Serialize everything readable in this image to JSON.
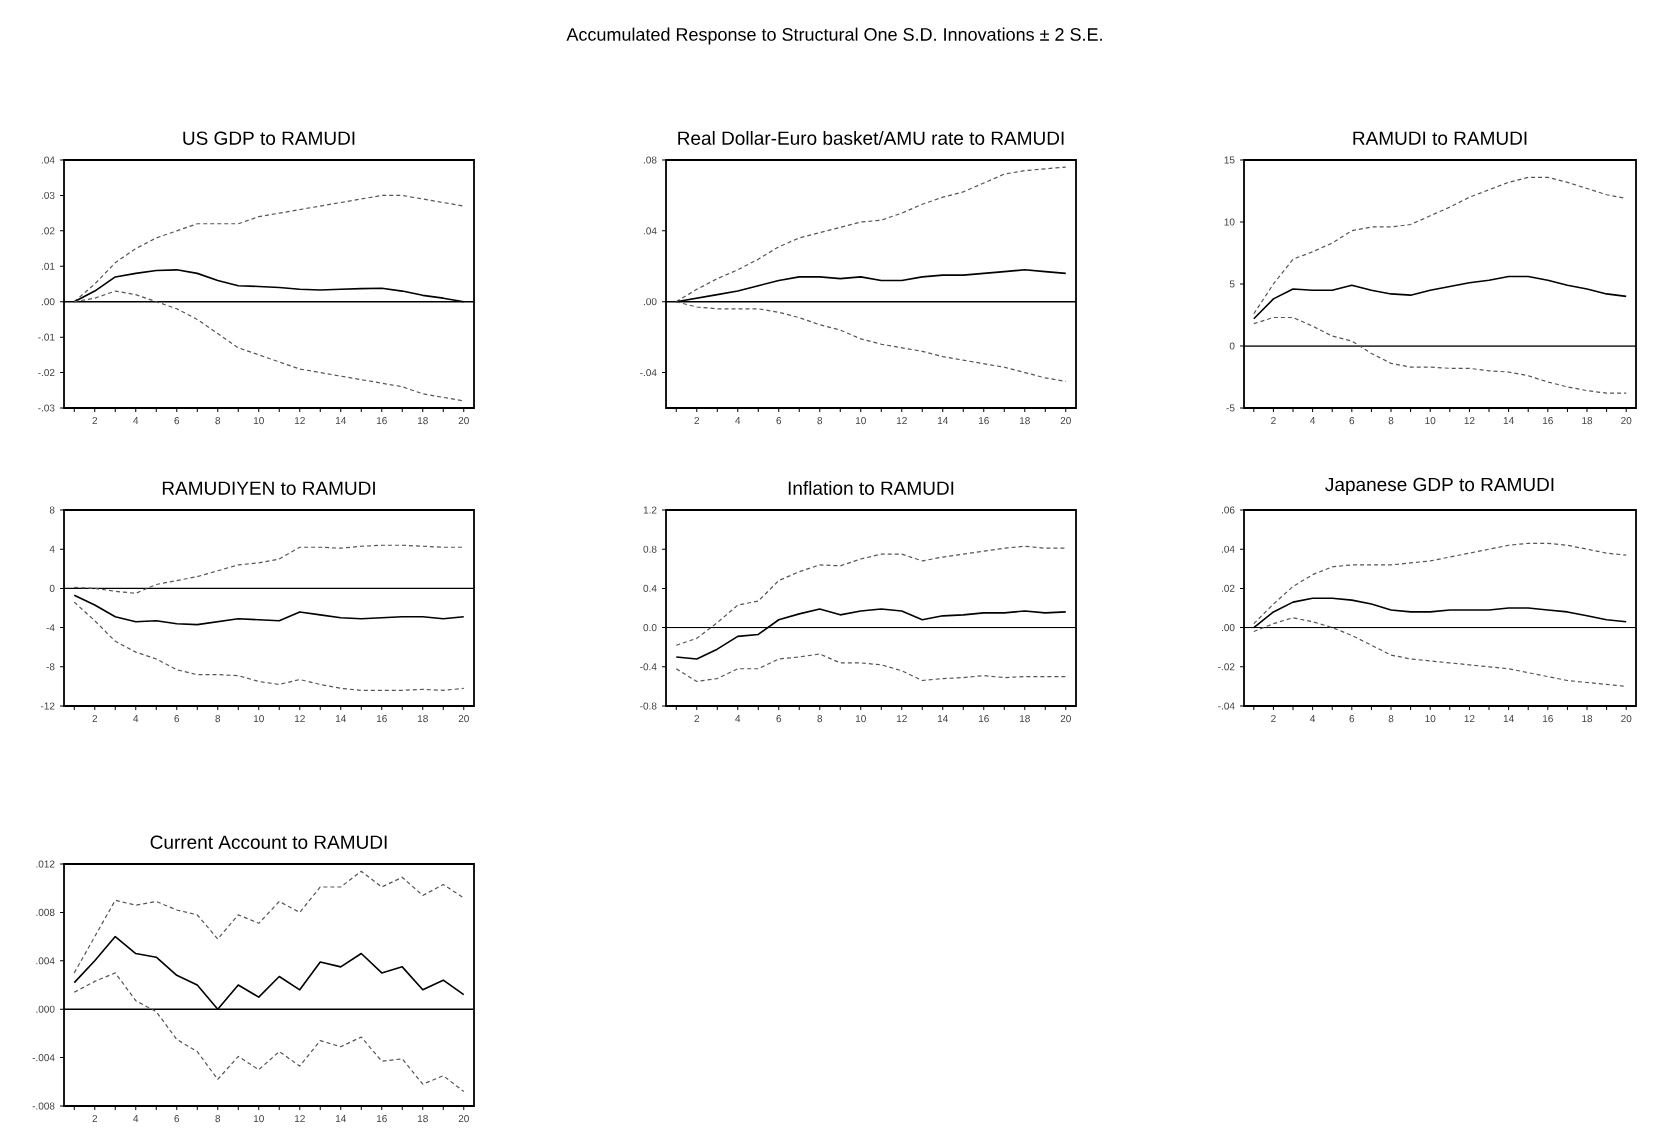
{
  "chart_data": [
    {
      "type": "other",
      "title": "Accumulated Response to Structural One S.D. Innovations ± 2 S.E."
    },
    {
      "type": "line",
      "title": "US GDP to RAMUDI",
      "x": [
        1,
        2,
        3,
        4,
        5,
        6,
        7,
        8,
        9,
        10,
        11,
        12,
        13,
        14,
        15,
        16,
        17,
        18,
        19,
        20
      ],
      "xlim": [
        0.5,
        20.5
      ],
      "ylim": [
        -0.03,
        0.04
      ],
      "xticks": [
        {
          "value": 1,
          "label": null
        },
        2,
        {
          "value": 3,
          "label": null
        },
        4,
        {
          "value": 5,
          "label": null
        },
        6,
        {
          "value": 7,
          "label": null
        },
        8,
        {
          "value": 9,
          "label": null
        },
        10,
        {
          "value": 11,
          "label": null
        },
        12,
        {
          "value": 13,
          "label": null
        },
        14,
        {
          "value": 15,
          "label": null
        },
        16,
        {
          "value": 17,
          "label": null
        },
        18,
        {
          "value": 19,
          "label": null
        },
        20
      ],
      "yticks": [
        {
          "value": -0.03,
          "label": "-.03"
        },
        {
          "value": -0.02,
          "label": "-.02"
        },
        {
          "value": -0.01,
          "label": "-.01"
        },
        {
          "value": 0,
          "label": ".00"
        },
        {
          "value": 0.01,
          "label": ".01"
        },
        {
          "value": 0.02,
          "label": ".02"
        },
        {
          "value": 0.03,
          "label": ".03"
        },
        {
          "value": 0.04,
          "label": ".04"
        }
      ],
      "ref_lines": [
        {
          "axis": "y",
          "value": 0,
          "color": "#000000"
        }
      ],
      "series": [
        {
          "color": "#555555",
          "line_style": "dashed",
          "values": [
            0,
            0.005,
            0.011,
            0.015,
            0.018,
            0.02,
            0.022,
            0.022,
            0.022,
            0.024,
            0.025,
            0.026,
            0.027,
            0.028,
            0.029,
            0.03,
            0.03,
            0.029,
            0.028,
            0.027
          ]
        },
        {
          "color": "#000000",
          "line_style": "solid",
          "values": [
            0,
            0.003,
            0.007,
            0.008,
            0.0088,
            0.009,
            0.008,
            0.006,
            0.0045,
            0.0043,
            0.004,
            0.0035,
            0.0033,
            0.0035,
            0.0037,
            0.0038,
            0.003,
            0.0018,
            0.001,
            0
          ]
        },
        {
          "color": "#555555",
          "line_style": "dashed",
          "values": [
            0,
            0.001,
            0.003,
            0.002,
            0,
            -0.002,
            -0.005,
            -0.009,
            -0.013,
            -0.015,
            -0.017,
            -0.019,
            -0.02,
            -0.021,
            -0.022,
            -0.023,
            -0.024,
            -0.026,
            -0.027,
            -0.028
          ]
        }
      ]
    },
    {
      "type": "line",
      "title": "Real Dollar-Euro basket/AMU rate to RAMUDI",
      "x": [
        1,
        2,
        3,
        4,
        5,
        6,
        7,
        8,
        9,
        10,
        11,
        12,
        13,
        14,
        15,
        16,
        17,
        18,
        19,
        20
      ],
      "xlim": [
        0.5,
        20.5
      ],
      "ylim": [
        -0.06,
        0.08
      ],
      "xticks": [
        {
          "value": 1,
          "label": null
        },
        2,
        {
          "value": 3,
          "label": null
        },
        4,
        {
          "value": 5,
          "label": null
        },
        6,
        {
          "value": 7,
          "label": null
        },
        8,
        {
          "value": 9,
          "label": null
        },
        10,
        {
          "value": 11,
          "label": null
        },
        12,
        {
          "value": 13,
          "label": null
        },
        14,
        {
          "value": 15,
          "label": null
        },
        16,
        {
          "value": 17,
          "label": null
        },
        18,
        {
          "value": 19,
          "label": null
        },
        20
      ],
      "yticks": [
        {
          "value": -0.04,
          "label": "-.04"
        },
        {
          "value": 0,
          "label": ".00"
        },
        {
          "value": 0.04,
          "label": ".04"
        },
        {
          "value": 0.08,
          "label": ".08"
        }
      ],
      "ref_lines": [
        {
          "axis": "y",
          "value": 0,
          "color": "#000000"
        }
      ],
      "series": [
        {
          "color": "#555555",
          "line_style": "dashed",
          "values": [
            0,
            0.007,
            0.013,
            0.018,
            0.024,
            0.031,
            0.036,
            0.039,
            0.042,
            0.045,
            0.046,
            0.05,
            0.055,
            0.059,
            0.062,
            0.067,
            0.072,
            0.074,
            0.075,
            0.076
          ]
        },
        {
          "color": "#000000",
          "line_style": "solid",
          "values": [
            0,
            0.002,
            0.004,
            0.006,
            0.009,
            0.012,
            0.014,
            0.014,
            0.013,
            0.014,
            0.012,
            0.012,
            0.014,
            0.015,
            0.015,
            0.016,
            0.017,
            0.018,
            0.017,
            0.016
          ]
        },
        {
          "color": "#555555",
          "line_style": "dashed",
          "values": [
            0,
            -0.003,
            -0.004,
            -0.004,
            -0.004,
            -0.006,
            -0.009,
            -0.013,
            -0.016,
            -0.021,
            -0.024,
            -0.026,
            -0.028,
            -0.031,
            -0.033,
            -0.035,
            -0.037,
            -0.04,
            -0.043,
            -0.045
          ]
        }
      ]
    },
    {
      "type": "line",
      "title": "RAMUDI to RAMUDI",
      "x": [
        1,
        2,
        3,
        4,
        5,
        6,
        7,
        8,
        9,
        10,
        11,
        12,
        13,
        14,
        15,
        16,
        17,
        18,
        19,
        20
      ],
      "xlim": [
        0.5,
        20.5
      ],
      "ylim": [
        -5,
        15
      ],
      "xticks": [
        {
          "value": 1,
          "label": null
        },
        2,
        {
          "value": 3,
          "label": null
        },
        4,
        {
          "value": 5,
          "label": null
        },
        6,
        {
          "value": 7,
          "label": null
        },
        8,
        {
          "value": 9,
          "label": null
        },
        10,
        {
          "value": 11,
          "label": null
        },
        12,
        {
          "value": 13,
          "label": null
        },
        14,
        {
          "value": 15,
          "label": null
        },
        16,
        {
          "value": 17,
          "label": null
        },
        18,
        {
          "value": 19,
          "label": null
        },
        20
      ],
      "yticks": [
        -5,
        0,
        5,
        10,
        15
      ],
      "ref_lines": [
        {
          "axis": "y",
          "value": 0,
          "color": "#000000"
        }
      ],
      "series": [
        {
          "color": "#555555",
          "line_style": "dashed",
          "values": [
            2.6,
            5.0,
            7.0,
            7.6,
            8.3,
            9.3,
            9.6,
            9.6,
            9.8,
            10.5,
            11.2,
            12.0,
            12.6,
            13.2,
            13.6,
            13.6,
            13.2,
            12.7,
            12.2,
            11.9
          ]
        },
        {
          "color": "#000000",
          "line_style": "solid",
          "values": [
            2.2,
            3.8,
            4.6,
            4.5,
            4.5,
            4.9,
            4.5,
            4.2,
            4.1,
            4.5,
            4.8,
            5.1,
            5.3,
            5.6,
            5.6,
            5.3,
            4.9,
            4.6,
            4.2,
            4.0
          ]
        },
        {
          "color": "#555555",
          "line_style": "dashed",
          "values": [
            1.8,
            2.3,
            2.3,
            1.6,
            0.8,
            0.4,
            -0.6,
            -1.4,
            -1.7,
            -1.7,
            -1.8,
            -1.8,
            -2.0,
            -2.1,
            -2.4,
            -2.9,
            -3.3,
            -3.6,
            -3.8,
            -3.8
          ]
        }
      ]
    },
    {
      "type": "line",
      "title": "RAMUDIYEN to RAMUDI",
      "x": [
        1,
        2,
        3,
        4,
        5,
        6,
        7,
        8,
        9,
        10,
        11,
        12,
        13,
        14,
        15,
        16,
        17,
        18,
        19,
        20
      ],
      "xlim": [
        0.5,
        20.5
      ],
      "ylim": [
        -12,
        8
      ],
      "xticks": [
        {
          "value": 1,
          "label": null
        },
        2,
        {
          "value": 3,
          "label": null
        },
        4,
        {
          "value": 5,
          "label": null
        },
        6,
        {
          "value": 7,
          "label": null
        },
        8,
        {
          "value": 9,
          "label": null
        },
        10,
        {
          "value": 11,
          "label": null
        },
        12,
        {
          "value": 13,
          "label": null
        },
        14,
        {
          "value": 15,
          "label": null
        },
        16,
        {
          "value": 17,
          "label": null
        },
        18,
        {
          "value": 19,
          "label": null
        },
        20
      ],
      "yticks": [
        -12,
        -8,
        -4,
        0,
        4,
        8
      ],
      "ref_lines": [
        {
          "axis": "y",
          "value": 0,
          "color": "#000000"
        }
      ],
      "series": [
        {
          "color": "#555555",
          "line_style": "dashed",
          "values": [
            0.1,
            0.0,
            -0.3,
            -0.5,
            0.4,
            0.8,
            1.2,
            1.8,
            2.4,
            2.6,
            3.0,
            4.2,
            4.2,
            4.1,
            4.3,
            4.4,
            4.4,
            4.3,
            4.2,
            4.2
          ]
        },
        {
          "color": "#000000",
          "line_style": "solid",
          "values": [
            -0.7,
            -1.7,
            -2.9,
            -3.4,
            -3.3,
            -3.6,
            -3.7,
            -3.4,
            -3.1,
            -3.2,
            -3.3,
            -2.4,
            -2.7,
            -3.0,
            -3.1,
            -3.0,
            -2.9,
            -2.9,
            -3.1,
            -2.9
          ]
        },
        {
          "color": "#555555",
          "line_style": "dashed",
          "values": [
            -1.4,
            -3.3,
            -5.4,
            -6.5,
            -7.2,
            -8.3,
            -8.8,
            -8.8,
            -8.9,
            -9.5,
            -9.8,
            -9.3,
            -9.8,
            -10.2,
            -10.4,
            -10.4,
            -10.4,
            -10.3,
            -10.4,
            -10.2
          ]
        }
      ]
    },
    {
      "type": "line",
      "title": "Inflation to RAMUDI",
      "x": [
        1,
        2,
        3,
        4,
        5,
        6,
        7,
        8,
        9,
        10,
        11,
        12,
        13,
        14,
        15,
        16,
        17,
        18,
        19,
        20
      ],
      "xlim": [
        0.5,
        20.5
      ],
      "ylim": [
        -0.8,
        1.2
      ],
      "xticks": [
        {
          "value": 1,
          "label": null
        },
        2,
        {
          "value": 3,
          "label": null
        },
        4,
        {
          "value": 5,
          "label": null
        },
        6,
        {
          "value": 7,
          "label": null
        },
        8,
        {
          "value": 9,
          "label": null
        },
        10,
        {
          "value": 11,
          "label": null
        },
        12,
        {
          "value": 13,
          "label": null
        },
        14,
        {
          "value": 15,
          "label": null
        },
        16,
        {
          "value": 17,
          "label": null
        },
        18,
        {
          "value": 19,
          "label": null
        },
        20
      ],
      "yticks": [
        {
          "value": -0.8,
          "label": "-0.8"
        },
        {
          "value": -0.4,
          "label": "-0.4"
        },
        {
          "value": 0,
          "label": "0.0"
        },
        {
          "value": 0.4,
          "label": "0.4"
        },
        {
          "value": 0.8,
          "label": "0.8"
        },
        {
          "value": 1.2,
          "label": "1.2"
        }
      ],
      "ref_lines": [
        {
          "axis": "y",
          "value": 0,
          "color": "#000000"
        }
      ],
      "series": [
        {
          "color": "#555555",
          "line_style": "dashed",
          "values": [
            -0.18,
            -0.11,
            0.05,
            0.23,
            0.27,
            0.48,
            0.57,
            0.64,
            0.63,
            0.7,
            0.75,
            0.75,
            0.68,
            0.72,
            0.75,
            0.78,
            0.81,
            0.83,
            0.81,
            0.81
          ]
        },
        {
          "color": "#000000",
          "line_style": "solid",
          "values": [
            -0.3,
            -0.32,
            -0.22,
            -0.09,
            -0.07,
            0.08,
            0.14,
            0.19,
            0.13,
            0.17,
            0.19,
            0.17,
            0.08,
            0.12,
            0.13,
            0.15,
            0.15,
            0.17,
            0.15,
            0.16
          ]
        },
        {
          "color": "#555555",
          "line_style": "dashed",
          "values": [
            -0.42,
            -0.55,
            -0.52,
            -0.42,
            -0.42,
            -0.32,
            -0.3,
            -0.27,
            -0.36,
            -0.36,
            -0.38,
            -0.44,
            -0.54,
            -0.52,
            -0.51,
            -0.49,
            -0.51,
            -0.5,
            -0.5,
            -0.5
          ]
        }
      ]
    },
    {
      "type": "line",
      "title": "Japanese GDP to RAMUDI",
      "x": [
        1,
        2,
        3,
        4,
        5,
        6,
        7,
        8,
        9,
        10,
        11,
        12,
        13,
        14,
        15,
        16,
        17,
        18,
        19,
        20
      ],
      "xlim": [
        0.5,
        20.5
      ],
      "ylim": [
        -0.04,
        0.06
      ],
      "xticks": [
        {
          "value": 1,
          "label": null
        },
        2,
        {
          "value": 3,
          "label": null
        },
        4,
        {
          "value": 5,
          "label": null
        },
        6,
        {
          "value": 7,
          "label": null
        },
        8,
        {
          "value": 9,
          "label": null
        },
        10,
        {
          "value": 11,
          "label": null
        },
        12,
        {
          "value": 13,
          "label": null
        },
        14,
        {
          "value": 15,
          "label": null
        },
        16,
        {
          "value": 17,
          "label": null
        },
        18,
        {
          "value": 19,
          "label": null
        },
        20
      ],
      "yticks": [
        {
          "value": -0.04,
          "label": "-.04"
        },
        {
          "value": -0.02,
          "label": "-.02"
        },
        {
          "value": 0,
          "label": ".00"
        },
        {
          "value": 0.02,
          "label": ".02"
        },
        {
          "value": 0.04,
          "label": ".04"
        },
        {
          "value": 0.06,
          "label": ".06"
        }
      ],
      "ref_lines": [
        {
          "axis": "y",
          "value": 0,
          "color": "#000000"
        }
      ],
      "series": [
        {
          "color": "#555555",
          "line_style": "dashed",
          "values": [
            0.002,
            0.012,
            0.021,
            0.027,
            0.031,
            0.032,
            0.032,
            0.032,
            0.033,
            0.034,
            0.036,
            0.038,
            0.04,
            0.042,
            0.043,
            0.043,
            0.042,
            0.04,
            0.038,
            0.037
          ]
        },
        {
          "color": "#000000",
          "line_style": "solid",
          "values": [
            0,
            0.008,
            0.013,
            0.015,
            0.015,
            0.014,
            0.012,
            0.009,
            0.008,
            0.008,
            0.009,
            0.009,
            0.009,
            0.01,
            0.01,
            0.009,
            0.008,
            0.006,
            0.004,
            0.003
          ]
        },
        {
          "color": "#555555",
          "line_style": "dashed",
          "values": [
            -0.002,
            0.002,
            0.005,
            0.003,
            0,
            -0.004,
            -0.009,
            -0.014,
            -0.016,
            -0.017,
            -0.018,
            -0.019,
            -0.02,
            -0.021,
            -0.023,
            -0.025,
            -0.027,
            -0.028,
            -0.029,
            -0.03
          ]
        }
      ]
    },
    {
      "type": "line",
      "title": "Current Account to RAMUDI",
      "x": [
        1,
        2,
        3,
        4,
        5,
        6,
        7,
        8,
        9,
        10,
        11,
        12,
        13,
        14,
        15,
        16,
        17,
        18,
        19,
        20
      ],
      "xlim": [
        0.5,
        20.5
      ],
      "ylim": [
        -0.008,
        0.012
      ],
      "xticks": [
        {
          "value": 1,
          "label": null
        },
        2,
        {
          "value": 3,
          "label": null
        },
        4,
        {
          "value": 5,
          "label": null
        },
        6,
        {
          "value": 7,
          "label": null
        },
        8,
        {
          "value": 9,
          "label": null
        },
        10,
        {
          "value": 11,
          "label": null
        },
        12,
        {
          "value": 13,
          "label": null
        },
        14,
        {
          "value": 15,
          "label": null
        },
        16,
        {
          "value": 17,
          "label": null
        },
        18,
        {
          "value": 19,
          "label": null
        },
        20
      ],
      "yticks": [
        {
          "value": -0.008,
          "label": "-.008"
        },
        {
          "value": -0.004,
          "label": "-.004"
        },
        {
          "value": 0,
          "label": ".000"
        },
        {
          "value": 0.004,
          "label": ".004"
        },
        {
          "value": 0.008,
          "label": ".008"
        },
        {
          "value": 0.012,
          "label": ".012"
        }
      ],
      "ref_lines": [
        {
          "axis": "y",
          "value": 0,
          "color": "#000000"
        }
      ],
      "series": [
        {
          "color": "#555555",
          "line_style": "dashed",
          "values": [
            0.003,
            0.006,
            0.009,
            0.0086,
            0.0089,
            0.0082,
            0.0078,
            0.0058,
            0.0078,
            0.0071,
            0.0089,
            0.008,
            0.0101,
            0.0101,
            0.0114,
            0.0101,
            0.0109,
            0.0094,
            0.0103,
            0.0092
          ]
        },
        {
          "color": "#000000",
          "line_style": "solid",
          "values": [
            0.0022,
            0.004,
            0.006,
            0.0046,
            0.0043,
            0.0028,
            0.002,
            0,
            0.002,
            0.001,
            0.0027,
            0.0016,
            0.0039,
            0.0035,
            0.0046,
            0.003,
            0.0035,
            0.0016,
            0.0024,
            0.0012
          ]
        },
        {
          "color": "#555555",
          "line_style": "dashed",
          "values": [
            0.0014,
            0.0023,
            0.003,
            0.0007,
            -0.0002,
            -0.0025,
            -0.0035,
            -0.0058,
            -0.0039,
            -0.005,
            -0.0035,
            -0.0047,
            -0.0026,
            -0.0031,
            -0.0023,
            -0.0043,
            -0.0041,
            -0.0062,
            -0.0055,
            -0.0068
          ]
        }
      ]
    }
  ]
}
